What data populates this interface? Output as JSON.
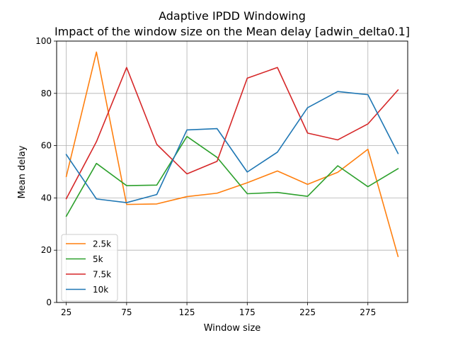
{
  "chart_data": {
    "type": "line",
    "title": "Adaptive IPDD Windowing",
    "subtitle": "Impact of the window size on the Mean delay [adwin_delta0.1]",
    "xlabel": "Window size",
    "ylabel": "Mean delay",
    "xlim": [
      17,
      308
    ],
    "ylim": [
      0,
      100
    ],
    "xticks": [
      "25",
      "75",
      "125",
      "175",
      "225",
      "275"
    ],
    "yticks": [
      "0",
      "20",
      "40",
      "60",
      "80",
      "100"
    ],
    "grid": true,
    "legend_position": "lower-left",
    "x": [
      25,
      50,
      75,
      100,
      125,
      150,
      175,
      200,
      225,
      250,
      275,
      300
    ],
    "series": [
      {
        "name": "2.5k",
        "color": "#ff7f0e",
        "values": [
          48.2,
          95.8,
          37.5,
          37.7,
          40.5,
          41.8,
          45.8,
          50.3,
          45.2,
          49.8,
          58.6,
          17.6
        ]
      },
      {
        "name": "5k",
        "color": "#2ca02c",
        "values": [
          33.0,
          53.2,
          44.7,
          44.9,
          63.5,
          55.5,
          41.6,
          42.1,
          40.6,
          52.3,
          44.3,
          51.2
        ]
      },
      {
        "name": "7.5k",
        "color": "#d62728",
        "values": [
          39.7,
          61.5,
          89.9,
          60.5,
          49.2,
          54.0,
          85.8,
          89.9,
          64.8,
          62.2,
          68.3,
          81.3
        ]
      },
      {
        "name": "10k",
        "color": "#1f77b4",
        "values": [
          56.6,
          39.6,
          38.2,
          41.3,
          66.0,
          66.5,
          49.9,
          57.5,
          74.5,
          80.7,
          79.5,
          57.0
        ]
      }
    ]
  }
}
